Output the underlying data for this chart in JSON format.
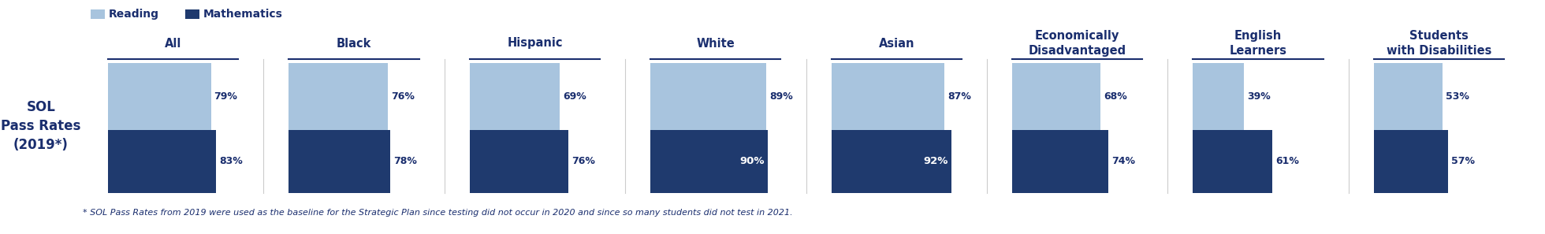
{
  "groups": [
    "All",
    "Black",
    "Hispanic",
    "White",
    "Asian",
    "Economically\nDisadvantaged",
    "English\nLearners",
    "Students\nwith Disabilities"
  ],
  "reading": [
    79,
    76,
    69,
    89,
    87,
    68,
    39,
    53
  ],
  "mathematics": [
    83,
    78,
    76,
    90,
    92,
    74,
    61,
    57
  ],
  "color_reading": "#a8c4de",
  "color_math": "#1f3a6e",
  "color_text": "#1a2e6e",
  "ylabel": "SOL\nPass Rates\n(2019*)",
  "legend_reading": "Reading",
  "legend_math": "Mathematics",
  "footnote": "* SOL Pass Rates from 2019 were used as the baseline for the Strategic Plan since testing did not occur in 2020 and since so many students did not test in 2021.",
  "math_white_text_threshold": 85
}
